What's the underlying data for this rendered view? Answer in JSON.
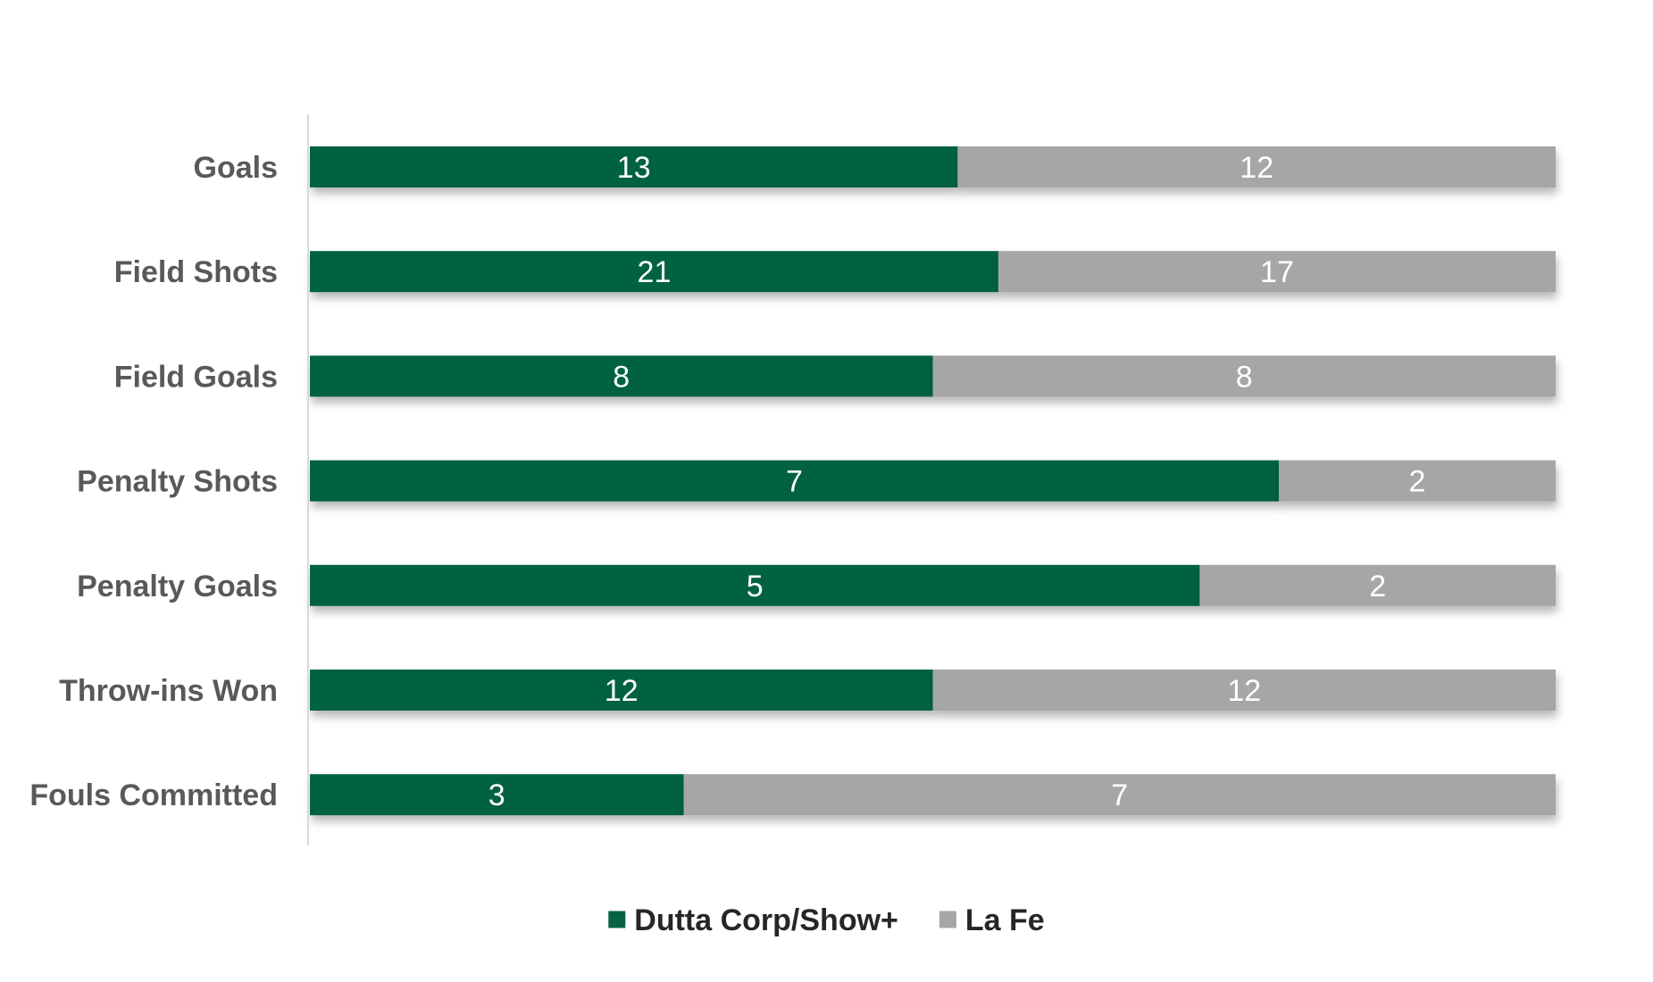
{
  "chart_data": {
    "type": "bar",
    "orientation": "horizontal",
    "stacked": "percent",
    "title": "",
    "xlabel": "",
    "ylabel": "",
    "categories": [
      "Goals",
      "Field Shots",
      "Field Goals",
      "Penalty Shots",
      "Penalty Goals",
      "Throw-ins Won",
      "Fouls Committed"
    ],
    "series": [
      {
        "name": "Dutta Corp/Show+",
        "color": "#066242",
        "values": [
          13,
          21,
          8,
          7,
          5,
          12,
          3
        ]
      },
      {
        "name": "La Fe",
        "color": "#a6a6a6",
        "values": [
          12,
          17,
          8,
          2,
          2,
          12,
          7
        ]
      }
    ],
    "data_labels": true,
    "grid": false,
    "legend_position": "bottom"
  }
}
